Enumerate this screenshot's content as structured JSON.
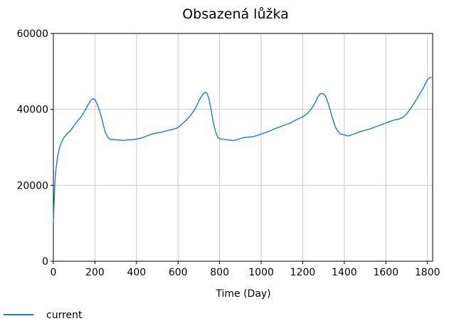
{
  "chart_data": {
    "type": "line",
    "title": "Obsazená lůžka",
    "xlabel": "Time (Day)",
    "ylabel": "",
    "xlim": [
      0,
      1825
    ],
    "ylim": [
      0,
      60000
    ],
    "x_ticks": [
      0,
      200,
      400,
      600,
      800,
      1000,
      1200,
      1400,
      1600,
      1800
    ],
    "y_ticks": [
      0,
      20000,
      40000,
      60000
    ],
    "grid": true,
    "legend_position": "bottom-left",
    "series": [
      {
        "name": "current",
        "color": "#1f77e0",
        "x": [
          0,
          5,
          10,
          20,
          30,
          40,
          50,
          60,
          70,
          80,
          90,
          100,
          110,
          120,
          130,
          140,
          150,
          160,
          170,
          180,
          190,
          200,
          210,
          220,
          230,
          240,
          250,
          260,
          270,
          280,
          290,
          300,
          320,
          340,
          360,
          380,
          400,
          420,
          440,
          460,
          480,
          500,
          520,
          540,
          560,
          580,
          600,
          620,
          640,
          660,
          680,
          700,
          710,
          720,
          730,
          740,
          750,
          760,
          770,
          780,
          790,
          800,
          810,
          820,
          840,
          860,
          880,
          900,
          920,
          940,
          960,
          980,
          1000,
          1020,
          1040,
          1060,
          1080,
          1100,
          1120,
          1140,
          1160,
          1180,
          1200,
          1220,
          1240,
          1260,
          1270,
          1280,
          1290,
          1300,
          1310,
          1320,
          1330,
          1340,
          1350,
          1360,
          1370,
          1380,
          1390,
          1400,
          1410,
          1420,
          1440,
          1460,
          1480,
          1500,
          1520,
          1540,
          1560,
          1580,
          1600,
          1620,
          1640,
          1660,
          1680,
          1700,
          1720,
          1740,
          1760,
          1780,
          1790,
          1800,
          1810,
          1820
        ],
        "y": [
          10000,
          18000,
          23000,
          27500,
          30000,
          31500,
          32500,
          33200,
          33800,
          34200,
          35000,
          35800,
          36500,
          37200,
          37800,
          38600,
          39500,
          40500,
          41500,
          42400,
          42800,
          42600,
          41500,
          40000,
          38200,
          36000,
          34000,
          32800,
          32200,
          32000,
          32100,
          32000,
          31900,
          31800,
          32000,
          32000,
          32200,
          32400,
          32800,
          33200,
          33600,
          33800,
          34000,
          34300,
          34600,
          34800,
          35200,
          36200,
          37200,
          38400,
          40000,
          42200,
          43200,
          44000,
          44500,
          44200,
          42500,
          39500,
          36500,
          34200,
          32800,
          32200,
          32200,
          32100,
          32000,
          31800,
          31900,
          32300,
          32600,
          32700,
          32800,
          33100,
          33500,
          33900,
          34300,
          34800,
          35200,
          35600,
          36000,
          36400,
          37000,
          37600,
          38000,
          38800,
          40000,
          41800,
          43000,
          43900,
          44200,
          44100,
          43500,
          42000,
          40200,
          38200,
          36500,
          35000,
          34200,
          33600,
          33400,
          33300,
          33100,
          33000,
          33400,
          33800,
          34200,
          34500,
          34800,
          35200,
          35600,
          36000,
          36400,
          36800,
          37200,
          37400,
          37800,
          38800,
          40300,
          42000,
          43800,
          45600,
          46800,
          47800,
          48300,
          48500
        ]
      }
    ]
  }
}
